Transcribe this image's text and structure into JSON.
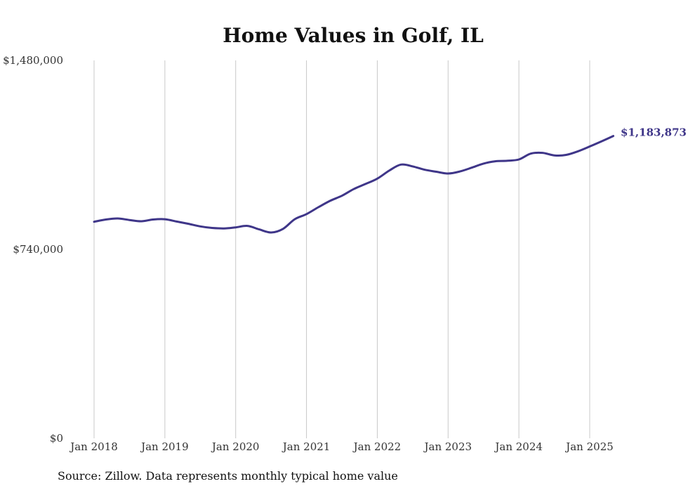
{
  "chart_data": {
    "type": "line",
    "title": "Home Values in Golf, IL",
    "xlabel": "",
    "ylabel": "",
    "ylim": [
      0,
      1480000
    ],
    "y_ticks": [
      {
        "value": 0,
        "label": "$0"
      },
      {
        "value": 740000,
        "label": "$740,000"
      },
      {
        "value": 1480000,
        "label": "$1,480,000"
      }
    ],
    "x_ticks": [
      "Jan 2018",
      "Jan 2019",
      "Jan 2020",
      "Jan 2021",
      "Jan 2022",
      "Jan 2023",
      "Jan 2024",
      "Jan 2025"
    ],
    "grid": "vertical",
    "line_color": "#3f3689",
    "series": [
      {
        "x": [
          "2018-01",
          "2018-03",
          "2018-05",
          "2018-07",
          "2018-09",
          "2018-11",
          "2019-01",
          "2019-03",
          "2019-05",
          "2019-07",
          "2019-09",
          "2019-11",
          "2020-01",
          "2020-03",
          "2020-05",
          "2020-07",
          "2020-09",
          "2020-11",
          "2021-01",
          "2021-03",
          "2021-05",
          "2021-07",
          "2021-09",
          "2021-11",
          "2022-01",
          "2022-03",
          "2022-05",
          "2022-07",
          "2022-09",
          "2022-11",
          "2023-01",
          "2023-03",
          "2023-05",
          "2023-07",
          "2023-09",
          "2023-11",
          "2024-01",
          "2024-03",
          "2024-05",
          "2024-07",
          "2024-09",
          "2024-11",
          "2025-01",
          "2025-03",
          "2025-05"
        ],
        "values": [
          848000,
          857000,
          861000,
          855000,
          850000,
          857000,
          858000,
          849000,
          840000,
          830000,
          824000,
          822000,
          826000,
          832000,
          818000,
          806000,
          820000,
          858000,
          878000,
          905000,
          930000,
          950000,
          976000,
          996000,
          1017000,
          1048000,
          1072000,
          1065000,
          1052000,
          1044000,
          1037000,
          1045000,
          1060000,
          1076000,
          1085000,
          1087000,
          1092000,
          1115000,
          1118000,
          1108000,
          1110000,
          1124000,
          1143000,
          1163000,
          1183873
        ]
      }
    ],
    "end_label": "$1,183,873"
  },
  "footer": {
    "source": "Source: Zillow. Data represents monthly typical home value"
  }
}
